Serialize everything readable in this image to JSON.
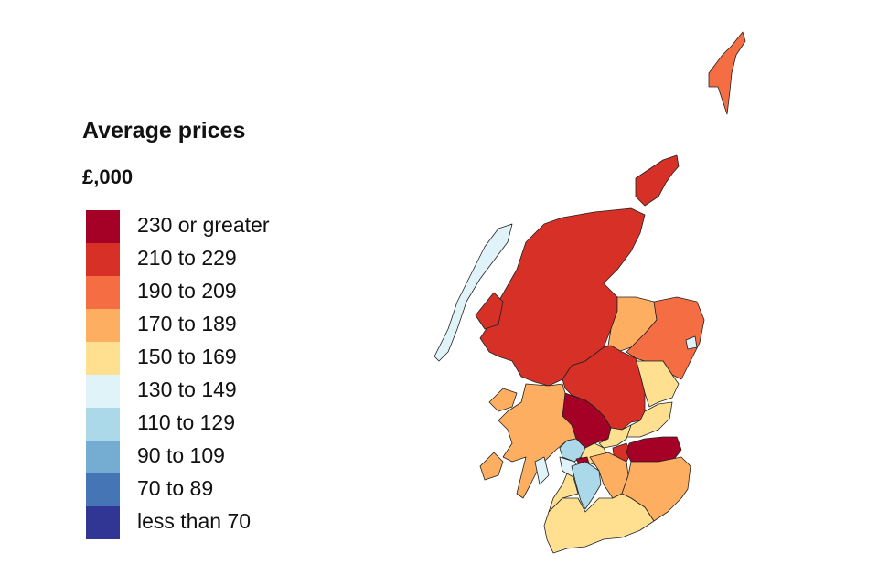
{
  "legend": {
    "title": "Average prices",
    "unit": "£,000",
    "items": [
      {
        "label": "230 or greater",
        "color": "#a50026"
      },
      {
        "label": "210 to 229",
        "color": "#d73027"
      },
      {
        "label": "190 to 209",
        "color": "#f46d43"
      },
      {
        "label": "170 to 189",
        "color": "#fdae61"
      },
      {
        "label": "150 to 169",
        "color": "#fee090"
      },
      {
        "label": "130 to 149",
        "color": "#e0f3f8"
      },
      {
        "label": "110 to 129",
        "color": "#abd9e9"
      },
      {
        "label": "90 to 109",
        "color": "#74add1"
      },
      {
        "label": "70 to 89",
        "color": "#4575b4"
      },
      {
        "label": "less than 70",
        "color": "#313695"
      }
    ]
  }
}
